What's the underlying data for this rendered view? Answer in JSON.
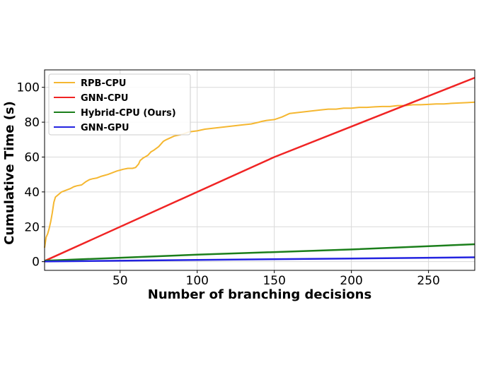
{
  "chart_data": {
    "type": "line",
    "title": "",
    "xlabel": "Number of branching decisions",
    "ylabel": "Cumulative Time (s)",
    "xlim": [
      1,
      280
    ],
    "ylim": [
      -5,
      110
    ],
    "xticks": [
      50,
      100,
      150,
      200,
      250
    ],
    "yticks": [
      0,
      20,
      40,
      60,
      80,
      100
    ],
    "grid": true,
    "legend_position": "top-left",
    "series": [
      {
        "name": "RPB-CPU",
        "color": "#f5b731",
        "x": [
          1,
          2,
          3,
          4,
          5,
          6,
          7,
          8,
          10,
          12,
          15,
          18,
          20,
          22,
          25,
          28,
          30,
          32,
          35,
          38,
          40,
          42,
          45,
          48,
          50,
          52,
          55,
          58,
          60,
          62,
          63,
          65,
          68,
          70,
          72,
          75,
          78,
          80,
          85,
          90,
          95,
          100,
          105,
          110,
          115,
          120,
          125,
          130,
          135,
          140,
          142,
          145,
          150,
          155,
          160,
          165,
          170,
          175,
          180,
          185,
          190,
          195,
          200,
          205,
          210,
          215,
          220,
          225,
          230,
          235,
          240,
          245,
          250,
          255,
          260,
          265,
          270,
          275,
          280
        ],
        "values": [
          8,
          14,
          16,
          19,
          23,
          28,
          34,
          37,
          38.5,
          40,
          41,
          42,
          43,
          43.5,
          44,
          46,
          47,
          47.5,
          48,
          49,
          49.5,
          50,
          51,
          52,
          52.5,
          53,
          53.5,
          53.5,
          54,
          56,
          58,
          59.5,
          61,
          63,
          64,
          66,
          69,
          70,
          72,
          73,
          74.5,
          75,
          76,
          76.5,
          77,
          77.5,
          78,
          78.5,
          79,
          80,
          80.5,
          81,
          81.5,
          83,
          85,
          85.5,
          86,
          86.5,
          87,
          87.5,
          87.5,
          88,
          88,
          88.5,
          88.5,
          88.8,
          89,
          89,
          89.5,
          89.5,
          90,
          90,
          90.2,
          90.5,
          90.5,
          90.8,
          91,
          91.2,
          91.5
        ]
      },
      {
        "name": "GNN-CPU",
        "color": "#f02424",
        "x": [
          1,
          150,
          280
        ],
        "values": [
          0.4,
          60,
          105.5
        ]
      },
      {
        "name": "Hybrid-CPU (Ours)",
        "color": "#1b7f1b",
        "x": [
          1,
          100,
          200,
          280
        ],
        "values": [
          0.5,
          4,
          7,
          10
        ]
      },
      {
        "name": "GNN-GPU",
        "color": "#2323e0",
        "x": [
          1,
          100,
          200,
          280
        ],
        "values": [
          0.1,
          1,
          1.8,
          2.5
        ]
      }
    ]
  }
}
